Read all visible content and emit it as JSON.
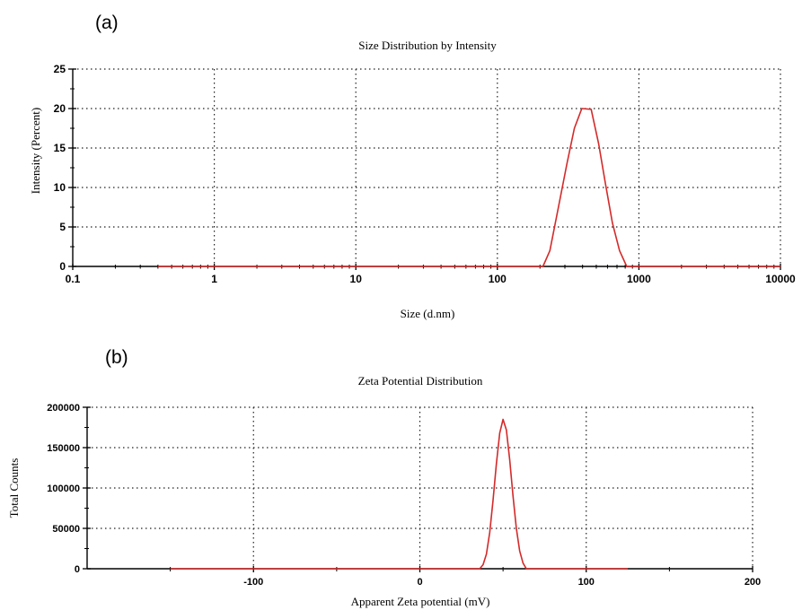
{
  "chart_data": [
    {
      "panel_label": "(a)",
      "type": "line",
      "title": "Size Distribution by Intensity",
      "xlabel": "Size (d.nm)",
      "ylabel": "Intensity (Percent)",
      "x_scale": "log",
      "xlim": [
        0.1,
        10000
      ],
      "ylim": [
        0,
        25
      ],
      "x_ticks": [
        0.1,
        1,
        10,
        100,
        1000,
        10000
      ],
      "x_tick_labels": [
        "0.1",
        "1",
        "10",
        "100",
        "1000",
        "10000"
      ],
      "y_ticks": [
        0,
        5,
        10,
        15,
        20,
        25
      ],
      "y_tick_labels": [
        "0",
        "5",
        "10",
        "15",
        "20",
        "25"
      ],
      "grid": true,
      "series": [
        {
          "color": "#d42a2a",
          "x": [
            0.4,
            210,
            235,
            270,
            310,
            350,
            395,
            460,
            520,
            580,
            650,
            730,
            820,
            10000
          ],
          "y": [
            0,
            0,
            2,
            7.5,
            13,
            17.5,
            20,
            19.9,
            15.5,
            10.5,
            5.5,
            2,
            0,
            0
          ]
        }
      ]
    },
    {
      "panel_label": "(b)",
      "type": "line",
      "title": "Zeta Potential Distribution",
      "xlabel": "Apparent Zeta potential (mV)",
      "ylabel": "Total Counts",
      "xlim": [
        -200,
        200
      ],
      "ylim": [
        0,
        200000
      ],
      "x_ticks": [
        -100,
        0,
        100,
        200
      ],
      "x_tick_labels": [
        "-100",
        "0",
        "100",
        "200"
      ],
      "y_ticks": [
        0,
        50000,
        100000,
        150000,
        200000
      ],
      "y_tick_labels": [
        "0",
        "50000",
        "100000",
        "150000",
        "200000"
      ],
      "grid": true,
      "series": [
        {
          "color": "#d42a2a",
          "x": [
            -150,
            36,
            38,
            40,
            42,
            44,
            46,
            48,
            50,
            52,
            54,
            56,
            58,
            60,
            62,
            64,
            125
          ],
          "y": [
            0,
            0,
            5000,
            18000,
            45000,
            85000,
            130000,
            168000,
            185000,
            172000,
            135000,
            90000,
            50000,
            22000,
            7000,
            0,
            0
          ]
        }
      ]
    }
  ]
}
